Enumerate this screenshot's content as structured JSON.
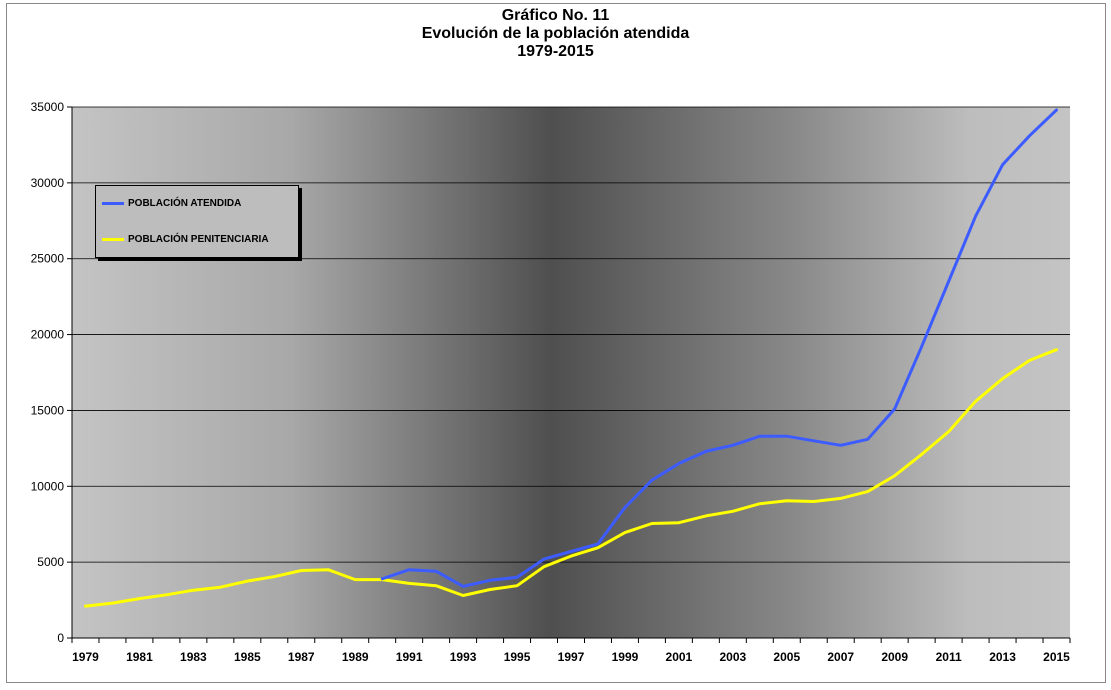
{
  "chart_data": {
    "type": "line",
    "title": [
      "Gráfico No. 11",
      "Evolución de la población atendida",
      "1979-2015"
    ],
    "x": [
      1979,
      1980,
      1981,
      1982,
      1983,
      1984,
      1985,
      1986,
      1987,
      1988,
      1989,
      1990,
      1991,
      1992,
      1993,
      1994,
      1995,
      1996,
      1997,
      1998,
      1999,
      2000,
      2001,
      2002,
      2003,
      2004,
      2005,
      2006,
      2007,
      2008,
      2009,
      2010,
      2011,
      2012,
      2013,
      2014,
      2015
    ],
    "xticks": [
      "1979",
      "1981",
      "1983",
      "1985",
      "1987",
      "1989",
      "1991",
      "1993",
      "1995",
      "1997",
      "1999",
      "2001",
      "2003",
      "2005",
      "2007",
      "2009",
      "2011",
      "2013",
      "2015"
    ],
    "yticks": [
      "0",
      "5000",
      "10000",
      "15000",
      "20000",
      "25000",
      "30000",
      "35000"
    ],
    "ylim": [
      0,
      35000
    ],
    "grid": true,
    "legend_position": "top-left",
    "series": [
      {
        "name": "POBLACIÓN ATENDIDA",
        "color": "#3d5cff",
        "values": [
          null,
          null,
          null,
          null,
          null,
          null,
          null,
          null,
          null,
          null,
          null,
          3900,
          4500,
          4400,
          3400,
          3800,
          4000,
          5200,
          5700,
          6200,
          8600,
          10400,
          11500,
          12300,
          12700,
          13300,
          13300,
          13000,
          12700,
          13100,
          15100,
          19200,
          23500,
          27800,
          31200,
          33100,
          34800
        ]
      },
      {
        "name": "POBLACIÓN PENITENCIARIA",
        "color": "#ffff00",
        "values": [
          2100,
          2300,
          2600,
          2850,
          3150,
          3350,
          3750,
          4050,
          4450,
          4500,
          3850,
          3850,
          3600,
          3450,
          2800,
          3200,
          3450,
          4700,
          5400,
          5950,
          6950,
          7550,
          7600,
          8050,
          8350,
          8850,
          9050,
          9000,
          9200,
          9650,
          10700,
          12100,
          13600,
          15600,
          17100,
          18300,
          19000
        ]
      }
    ]
  },
  "legend": {
    "items": [
      "POBLACIÓN ATENDIDA",
      "POBLACIÓN PENITENCIARIA"
    ]
  }
}
